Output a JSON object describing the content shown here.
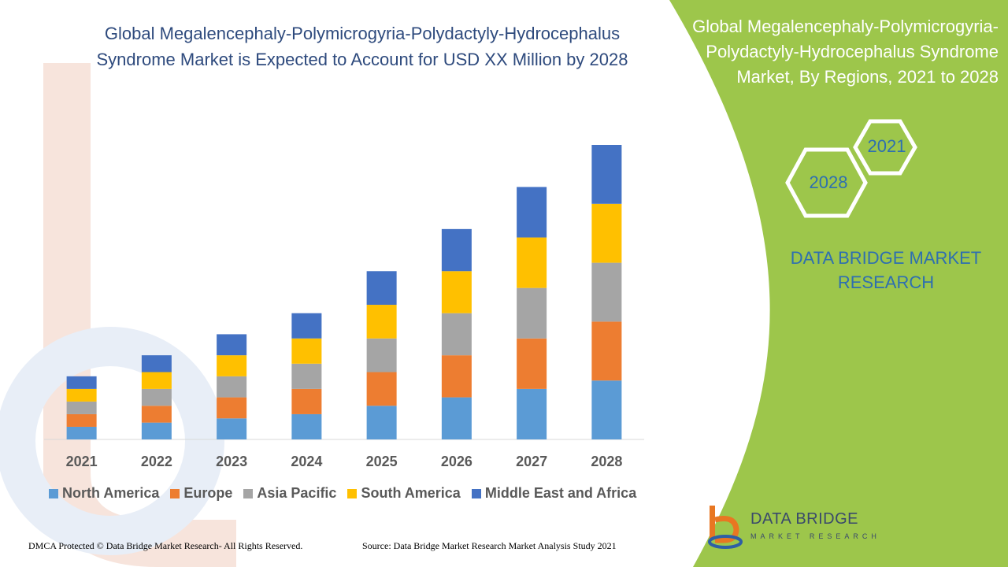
{
  "chart_data": {
    "type": "bar",
    "stacked": true,
    "title": "Global Megalencephaly-Polymicrogyria-Polydactyly-Hydrocephalus Syndrome Market is Expected to Account for USD XX Million by 2028",
    "categories": [
      "2021",
      "2022",
      "2023",
      "2024",
      "2025",
      "2026",
      "2027",
      "2028"
    ],
    "series": [
      {
        "name": "North America",
        "color": "#5b9bd5",
        "values": [
          15,
          20,
          25,
          30,
          40,
          50,
          60,
          70
        ]
      },
      {
        "name": "Europe",
        "color": "#ed7d31",
        "values": [
          15,
          20,
          25,
          30,
          40,
          50,
          60,
          70
        ]
      },
      {
        "name": "Asia Pacific",
        "color": "#a5a5a5",
        "values": [
          15,
          20,
          25,
          30,
          40,
          50,
          60,
          70
        ]
      },
      {
        "name": "South America",
        "color": "#ffc000",
        "values": [
          15,
          20,
          25,
          30,
          40,
          50,
          60,
          70
        ]
      },
      {
        "name": "Middle East and Africa",
        "color": "#4472c4",
        "values": [
          15,
          20,
          25,
          30,
          40,
          50,
          60,
          70
        ]
      }
    ],
    "ylim": [
      0,
      350
    ],
    "y_axis_visible": false,
    "grid": false,
    "legend_position": "bottom"
  },
  "side_panel": {
    "heading": "Global Megalencephaly-Polymicrogyria-Polydactyly-Hydrocephalus Syndrome Market, By Regions, 2021 to 2028",
    "hex_start": "2021",
    "hex_end": "2028",
    "brand": "DATA BRIDGE MARKET RESEARCH",
    "background_color": "#9dc64b"
  },
  "logo": {
    "name": "DATA BRIDGE",
    "subtitle": "MARKET RESEARCH"
  },
  "footer": {
    "left": "DMCA Protected © Data Bridge Market Research- All Rights Reserved.",
    "right": "Source: Data Bridge Market Research Market Analysis Study 2021"
  }
}
